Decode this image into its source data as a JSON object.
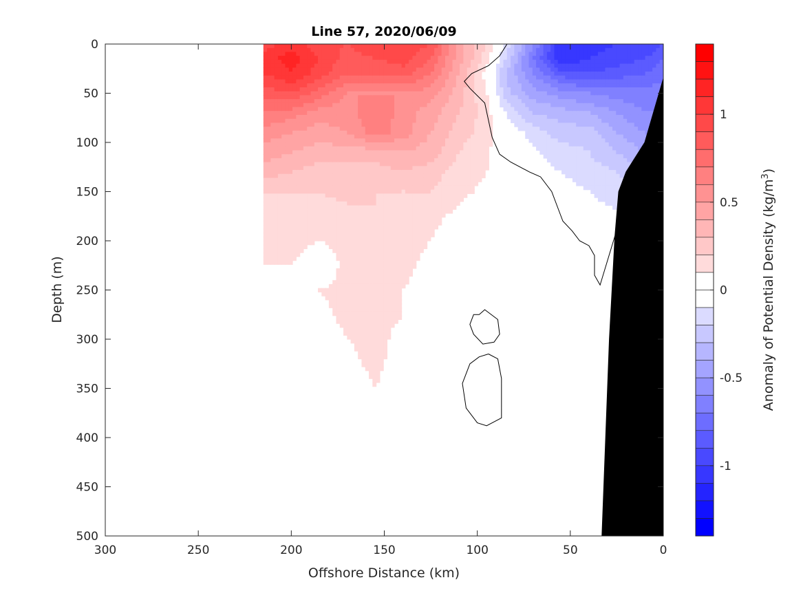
{
  "chart_data": {
    "type": "heatmap",
    "title": "Line 57, 2020/06/09",
    "xlabel": "Offshore Distance (km)",
    "ylabel": "Depth (m)",
    "xlim": [
      300,
      0
    ],
    "ylim": [
      500,
      0
    ],
    "x_reversed": true,
    "y_reversed": true,
    "xticks": [
      "300",
      "250",
      "200",
      "150",
      "100",
      "50",
      "0"
    ],
    "yticks": [
      "0",
      "50",
      "100",
      "150",
      "200",
      "250",
      "300",
      "350",
      "400",
      "450",
      "500"
    ],
    "colorbar": {
      "label_main": "Anomaly of Potential Density (kg/m",
      "label_sup": "3",
      "label_end": ")",
      "range": [
        -1.4,
        1.4
      ],
      "step": 0.1,
      "ticks": [
        "1",
        "0.5",
        "0",
        "-0.5",
        "-1"
      ],
      "colormap": "blue-white-red"
    },
    "colors": {
      "positive": "#ff0000",
      "negative": "#0000ff",
      "zero": "#ffffff",
      "seafloor": "#000000"
    },
    "field": {
      "x_km": [
        215,
        200,
        185,
        170,
        155,
        140,
        125,
        110,
        95,
        85,
        70,
        55,
        40,
        25,
        10,
        0
      ],
      "depth_m": [
        0,
        15,
        30,
        50,
        70,
        90,
        110,
        130,
        150,
        175,
        200,
        225,
        250,
        275,
        300,
        325,
        350,
        375,
        400
      ],
      "anomaly": [
        [
          0.95,
          1.05,
          0.95,
          0.9,
          1.0,
          1.0,
          0.9,
          0.45,
          0.2,
          -0.1,
          -0.6,
          -1.1,
          -1.05,
          -1.0,
          -1.0,
          -0.9
        ],
        [
          1.05,
          1.15,
          1.0,
          0.85,
          0.9,
          0.95,
          0.8,
          0.45,
          0.15,
          -0.2,
          -0.7,
          -1.1,
          -1.0,
          -0.95,
          -0.9,
          -0.8
        ],
        [
          1.0,
          1.1,
          0.95,
          0.8,
          0.8,
          0.85,
          0.7,
          0.4,
          0.05,
          -0.3,
          -0.6,
          -0.85,
          -0.9,
          -0.85,
          -0.8,
          -0.75
        ],
        [
          0.85,
          0.9,
          0.75,
          0.6,
          0.6,
          0.6,
          0.55,
          0.35,
          0.1,
          -0.25,
          -0.45,
          -0.55,
          -0.6,
          -0.65,
          -0.65,
          -0.65
        ],
        [
          0.7,
          0.65,
          0.55,
          0.55,
          0.7,
          0.55,
          0.45,
          0.3,
          0.15,
          -0.1,
          -0.3,
          -0.35,
          -0.4,
          -0.5,
          -0.6,
          -0.6
        ],
        [
          0.55,
          0.5,
          0.45,
          0.5,
          0.65,
          0.55,
          0.4,
          0.25,
          0.15,
          0.0,
          -0.15,
          -0.25,
          -0.25,
          -0.4,
          -0.5,
          -0.55
        ],
        [
          0.45,
          0.4,
          0.35,
          0.35,
          0.35,
          0.4,
          0.35,
          0.2,
          0.12,
          0.0,
          -0.08,
          -0.15,
          -0.2,
          -0.3,
          -0.4,
          -0.45
        ],
        [
          0.35,
          0.3,
          0.25,
          0.25,
          0.25,
          0.3,
          0.25,
          0.15,
          0.1,
          0.0,
          -0.05,
          -0.1,
          -0.15,
          -0.2,
          -0.3,
          -0.35
        ],
        [
          0.2,
          0.2,
          0.2,
          0.25,
          0.2,
          0.2,
          0.2,
          0.12,
          0.08,
          0.02,
          -0.02,
          -0.06,
          -0.1,
          -0.15,
          -0.2,
          -0.25
        ],
        [
          0.12,
          0.12,
          0.12,
          0.15,
          0.2,
          0.15,
          0.12,
          0.08,
          0.04,
          0.0,
          0.0,
          -0.02,
          -0.05,
          -0.08,
          -0.1,
          -0.1
        ],
        [
          0.12,
          0.12,
          0.1,
          0.12,
          0.12,
          0.12,
          0.1,
          0.05,
          0.02,
          0.0,
          0.0,
          0.0,
          0.0,
          0.0,
          0.0,
          0.0
        ],
        [
          0.1,
          0.1,
          0.05,
          0.12,
          0.12,
          0.12,
          0.08,
          0.04,
          0.01,
          0.0,
          0.0,
          0.0,
          0.0,
          0.0,
          0.0,
          0.0
        ],
        [
          0.06,
          0.08,
          0.1,
          0.12,
          0.12,
          0.1,
          0.06,
          0.03,
          0.0,
          0.0,
          0.0,
          0.0,
          0.0,
          0.0,
          0.0,
          0.0
        ],
        [
          0.04,
          0.05,
          0.08,
          0.12,
          0.12,
          0.1,
          0.05,
          0.02,
          -0.02,
          -0.01,
          0.0,
          0.0,
          0.0,
          0.0,
          0.0,
          0.0
        ],
        [
          0.02,
          0.03,
          0.05,
          0.1,
          0.12,
          0.08,
          0.04,
          0.01,
          0.0,
          0.0,
          0.0,
          0.0,
          0.0,
          0.0,
          0.0,
          0.0
        ],
        [
          0.0,
          0.01,
          0.02,
          0.08,
          0.12,
          0.06,
          0.02,
          0.0,
          -0.02,
          -0.01,
          0.0,
          0.0,
          0.0,
          0.0,
          0.0,
          0.0
        ],
        [
          0.0,
          0.0,
          0.0,
          0.04,
          0.1,
          0.04,
          0.01,
          0.0,
          -0.03,
          -0.01,
          0.0,
          0.0,
          0.0,
          0.0,
          0.0,
          0.0
        ],
        [
          0.0,
          0.0,
          0.0,
          0.02,
          0.06,
          0.02,
          0.0,
          0.0,
          -0.02,
          0.0,
          0.0,
          0.0,
          0.0,
          0.0,
          0.0,
          0.0
        ],
        [
          0.0,
          0.0,
          0.0,
          0.0,
          0.03,
          0.01,
          0.0,
          0.0,
          0.0,
          0.0,
          0.0,
          0.0,
          0.0,
          0.0,
          0.0,
          0.0
        ]
      ]
    },
    "bathymetry": {
      "x_km": [
        0,
        0,
        10,
        20,
        24,
        26,
        29,
        31,
        33
      ],
      "depth_m": [
        500,
        35,
        100,
        130,
        150,
        195,
        300,
        400,
        500
      ]
    },
    "zero_contours": [
      {
        "x_km": [
          84,
          88,
          94,
          103,
          107,
          104,
          96,
          92,
          88,
          82,
          72,
          66,
          60,
          57,
          54,
          49,
          45,
          40,
          37,
          37,
          34,
          26
        ],
        "depth_m": [
          0,
          12,
          22,
          30,
          38,
          45,
          60,
          95,
          112,
          120,
          130,
          135,
          150,
          165,
          180,
          190,
          200,
          205,
          215,
          235,
          245,
          195
        ]
      },
      {
        "x_km": [
          99,
          96,
          89,
          88,
          91,
          97,
          102,
          104,
          102,
          99
        ],
        "depth_m": [
          275,
          270,
          280,
          295,
          303,
          305,
          295,
          285,
          275,
          275
        ]
      },
      {
        "x_km": [
          94,
          89,
          87,
          87,
          95,
          100,
          106,
          108,
          104,
          99,
          94
        ],
        "depth_m": [
          315,
          320,
          340,
          380,
          388,
          385,
          370,
          345,
          325,
          318,
          315
        ]
      }
    ]
  }
}
